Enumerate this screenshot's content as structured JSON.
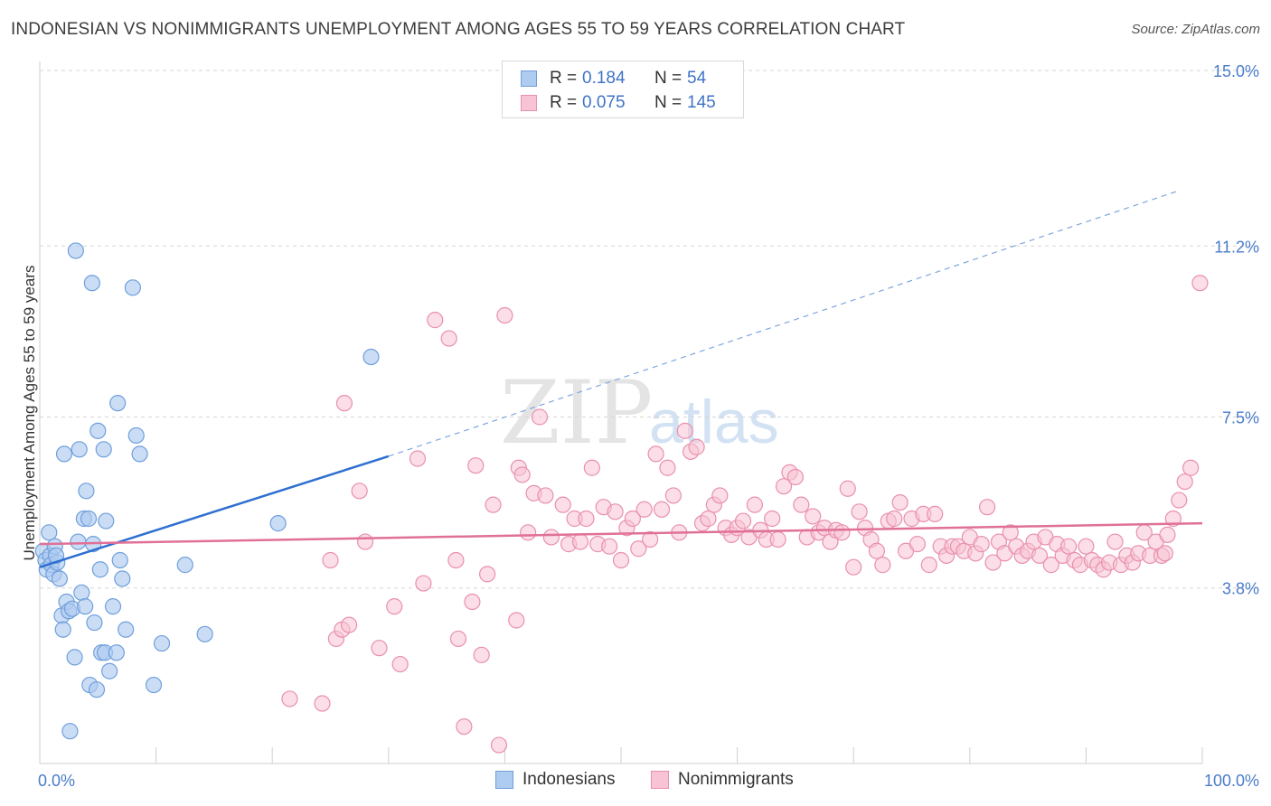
{
  "title": "INDONESIAN VS NONIMMIGRANTS UNEMPLOYMENT AMONG AGES 55 TO 59 YEARS CORRELATION CHART",
  "source": "Source: ZipAtlas.com",
  "watermark": {
    "zip": "ZIP",
    "atlas": "atlas"
  },
  "colors": {
    "indonesians_fill": "#aecbf0",
    "indonesians_stroke": "#6f9fdc",
    "indonesians_line": "#2e6fd0",
    "nonimmigrants_fill": "#f8c3d4",
    "nonimmigrants_stroke": "#e990ad",
    "nonimmigrants_line": "#e07097",
    "tick_text": "#4a7cc9",
    "grid": "#d6d6d6"
  },
  "legend": {
    "rows": [
      {
        "r_label": "R =",
        "r_value": "0.184",
        "n_label": "N =",
        "n_value": "54"
      },
      {
        "r_label": "R =",
        "r_value": "0.075",
        "n_label": "N =",
        "n_value": "145"
      }
    ]
  },
  "bottom_legend": {
    "series1": "Indonesians",
    "series2": "Nonimmigrants"
  },
  "chart_data": {
    "type": "scatter",
    "title": "INDONESIAN VS NONIMMIGRANTS UNEMPLOYMENT AMONG AGES 55 TO 59 YEARS CORRELATION CHART",
    "xlabel": "",
    "ylabel": "Unemployment Among Ages 55 to 59 years",
    "xlim": [
      0,
      100
    ],
    "ylim": [
      0,
      15.0
    ],
    "x_tick_labels": [
      "0.0%",
      "100.0%"
    ],
    "y_ticks": [
      3.8,
      7.5,
      11.2,
      15.0
    ],
    "y_tick_labels": [
      "3.8%",
      "7.5%",
      "11.2%",
      "15.0%"
    ],
    "grid": "horizontal dashed",
    "legend_position": "top-center",
    "series": [
      {
        "name": "Indonesians",
        "r": 0.184,
        "n": 54,
        "trend": {
          "x0": 0,
          "y0": 4.25,
          "x_solid_end": 30,
          "y_solid_end": 6.65,
          "x1": 98,
          "y1": 12.4
        },
        "points": [
          [
            0.3,
            4.6
          ],
          [
            0.5,
            4.4
          ],
          [
            0.6,
            4.2
          ],
          [
            0.8,
            5.0
          ],
          [
            0.9,
            4.5
          ],
          [
            1.0,
            4.3
          ],
          [
            1.2,
            4.1
          ],
          [
            1.3,
            4.7
          ],
          [
            1.5,
            4.35
          ],
          [
            1.7,
            4.0
          ],
          [
            1.9,
            3.2
          ],
          [
            2.0,
            2.9
          ],
          [
            2.1,
            6.7
          ],
          [
            2.3,
            3.5
          ],
          [
            2.5,
            3.3
          ],
          [
            2.6,
            0.7
          ],
          [
            2.8,
            3.35
          ],
          [
            3.0,
            2.3
          ],
          [
            3.1,
            11.1
          ],
          [
            3.3,
            4.8
          ],
          [
            3.4,
            6.8
          ],
          [
            3.6,
            3.7
          ],
          [
            3.8,
            5.3
          ],
          [
            3.9,
            3.4
          ],
          [
            4.0,
            5.9
          ],
          [
            4.2,
            5.3
          ],
          [
            4.3,
            1.7
          ],
          [
            4.5,
            10.4
          ],
          [
            4.6,
            4.75
          ],
          [
            4.7,
            3.05
          ],
          [
            4.9,
            1.6
          ],
          [
            5.0,
            7.2
          ],
          [
            5.2,
            4.2
          ],
          [
            5.3,
            2.4
          ],
          [
            5.5,
            6.8
          ],
          [
            5.6,
            2.4
          ],
          [
            5.7,
            5.25
          ],
          [
            6.0,
            2.0
          ],
          [
            6.3,
            3.4
          ],
          [
            6.6,
            2.4
          ],
          [
            6.7,
            7.8
          ],
          [
            6.9,
            4.4
          ],
          [
            7.1,
            4.0
          ],
          [
            7.4,
            2.9
          ],
          [
            8.0,
            10.3
          ],
          [
            8.3,
            7.1
          ],
          [
            8.6,
            6.7
          ],
          [
            9.8,
            1.7
          ],
          [
            10.5,
            2.6
          ],
          [
            12.5,
            4.3
          ],
          [
            14.2,
            2.8
          ],
          [
            20.5,
            5.2
          ],
          [
            28.5,
            8.8
          ],
          [
            1.4,
            4.5
          ]
        ]
      },
      {
        "name": "Nonimmigrants",
        "r": 0.075,
        "n": 145,
        "trend": {
          "x0": 0,
          "y0": 4.75,
          "x1": 100,
          "y1": 5.2
        },
        "points": [
          [
            21.5,
            1.4
          ],
          [
            24.3,
            1.3
          ],
          [
            25.0,
            4.4
          ],
          [
            25.5,
            2.7
          ],
          [
            26.0,
            2.9
          ],
          [
            26.2,
            7.8
          ],
          [
            26.6,
            3.0
          ],
          [
            27.5,
            5.9
          ],
          [
            28.0,
            4.8
          ],
          [
            29.2,
            2.5
          ],
          [
            30.5,
            3.4
          ],
          [
            31.0,
            2.15
          ],
          [
            32.5,
            6.6
          ],
          [
            33.0,
            3.9
          ],
          [
            34.0,
            9.6
          ],
          [
            35.2,
            9.2
          ],
          [
            35.8,
            4.4
          ],
          [
            36.0,
            2.7
          ],
          [
            36.5,
            0.8
          ],
          [
            37.2,
            3.5
          ],
          [
            37.5,
            6.45
          ],
          [
            38.0,
            2.35
          ],
          [
            38.5,
            4.1
          ],
          [
            39.0,
            5.6
          ],
          [
            39.5,
            0.4
          ],
          [
            40.0,
            9.7
          ],
          [
            41.0,
            3.1
          ],
          [
            41.2,
            6.4
          ],
          [
            41.5,
            6.25
          ],
          [
            42.0,
            5.0
          ],
          [
            42.5,
            5.85
          ],
          [
            43.0,
            7.5
          ],
          [
            43.5,
            5.8
          ],
          [
            44.0,
            4.9
          ],
          [
            45.0,
            5.6
          ],
          [
            45.5,
            4.75
          ],
          [
            46.0,
            5.3
          ],
          [
            46.5,
            4.8
          ],
          [
            47.0,
            5.3
          ],
          [
            47.5,
            6.4
          ],
          [
            48.0,
            4.75
          ],
          [
            48.5,
            5.55
          ],
          [
            49.0,
            4.7
          ],
          [
            49.5,
            5.45
          ],
          [
            50.0,
            4.4
          ],
          [
            50.5,
            5.1
          ],
          [
            51.0,
            5.3
          ],
          [
            51.5,
            4.65
          ],
          [
            52.0,
            5.5
          ],
          [
            52.5,
            4.85
          ],
          [
            53.0,
            6.7
          ],
          [
            53.5,
            5.5
          ],
          [
            54.0,
            6.4
          ],
          [
            54.5,
            5.8
          ],
          [
            55.0,
            5.0
          ],
          [
            55.5,
            7.2
          ],
          [
            56.0,
            6.75
          ],
          [
            56.5,
            6.85
          ],
          [
            57.0,
            5.2
          ],
          [
            57.5,
            5.3
          ],
          [
            58.0,
            5.6
          ],
          [
            58.5,
            5.8
          ],
          [
            59.0,
            5.1
          ],
          [
            59.5,
            4.95
          ],
          [
            60.0,
            5.1
          ],
          [
            60.5,
            5.25
          ],
          [
            61.0,
            4.9
          ],
          [
            61.5,
            5.6
          ],
          [
            62.0,
            5.05
          ],
          [
            62.5,
            4.85
          ],
          [
            63.0,
            5.3
          ],
          [
            63.5,
            4.85
          ],
          [
            64.0,
            6.0
          ],
          [
            64.5,
            6.3
          ],
          [
            65.0,
            6.2
          ],
          [
            65.5,
            5.6
          ],
          [
            66.0,
            4.9
          ],
          [
            66.5,
            5.35
          ],
          [
            67.0,
            5.0
          ],
          [
            67.5,
            5.1
          ],
          [
            68.0,
            4.8
          ],
          [
            68.5,
            5.05
          ],
          [
            69.0,
            5.0
          ],
          [
            69.5,
            5.95
          ],
          [
            70.0,
            4.25
          ],
          [
            70.5,
            5.45
          ],
          [
            71.0,
            5.1
          ],
          [
            71.5,
            4.85
          ],
          [
            72.0,
            4.6
          ],
          [
            72.5,
            4.3
          ],
          [
            73.0,
            5.25
          ],
          [
            73.5,
            5.3
          ],
          [
            74.0,
            5.65
          ],
          [
            74.5,
            4.6
          ],
          [
            75.0,
            5.3
          ],
          [
            75.5,
            4.75
          ],
          [
            76.0,
            5.4
          ],
          [
            76.5,
            4.3
          ],
          [
            77.0,
            5.4
          ],
          [
            77.5,
            4.7
          ],
          [
            78.0,
            4.5
          ],
          [
            78.5,
            4.7
          ],
          [
            79.0,
            4.7
          ],
          [
            79.5,
            4.6
          ],
          [
            80.0,
            4.9
          ],
          [
            80.5,
            4.55
          ],
          [
            81.0,
            4.75
          ],
          [
            81.5,
            5.55
          ],
          [
            82.0,
            4.35
          ],
          [
            82.5,
            4.8
          ],
          [
            83.0,
            4.55
          ],
          [
            83.5,
            5.0
          ],
          [
            84.0,
            4.7
          ],
          [
            84.5,
            4.5
          ],
          [
            85.0,
            4.6
          ],
          [
            85.5,
            4.8
          ],
          [
            86.0,
            4.5
          ],
          [
            86.5,
            4.9
          ],
          [
            87.0,
            4.3
          ],
          [
            87.5,
            4.75
          ],
          [
            88.0,
            4.5
          ],
          [
            88.5,
            4.7
          ],
          [
            89.0,
            4.4
          ],
          [
            89.5,
            4.3
          ],
          [
            90.0,
            4.7
          ],
          [
            90.5,
            4.4
          ],
          [
            91.0,
            4.3
          ],
          [
            91.5,
            4.2
          ],
          [
            92.0,
            4.35
          ],
          [
            92.5,
            4.8
          ],
          [
            93.0,
            4.3
          ],
          [
            93.5,
            4.5
          ],
          [
            94.0,
            4.35
          ],
          [
            94.5,
            4.55
          ],
          [
            95.0,
            5.0
          ],
          [
            95.5,
            4.5
          ],
          [
            96.0,
            4.8
          ],
          [
            96.5,
            4.5
          ],
          [
            97.0,
            4.95
          ],
          [
            97.5,
            5.3
          ],
          [
            98.0,
            5.7
          ],
          [
            98.5,
            6.1
          ],
          [
            99.0,
            6.4
          ],
          [
            99.8,
            10.4
          ],
          [
            96.8,
            4.55
          ]
        ]
      }
    ]
  }
}
